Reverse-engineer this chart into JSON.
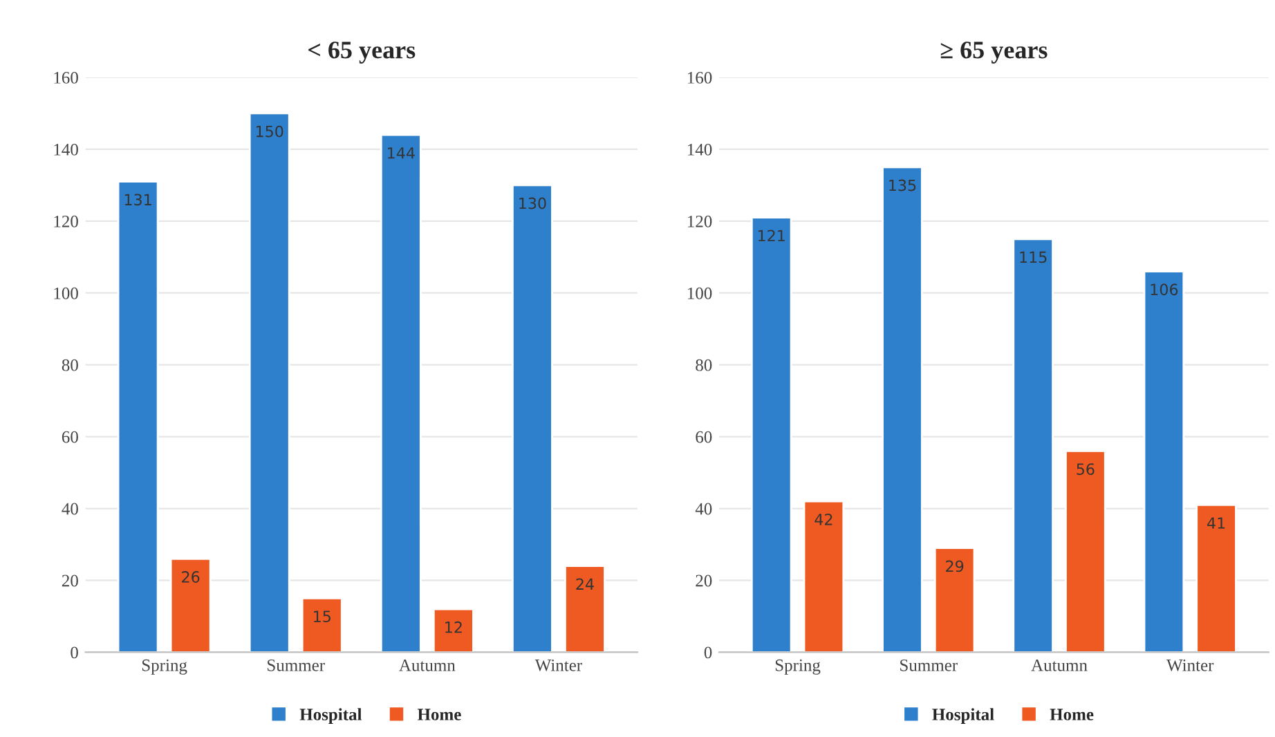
{
  "chart_data": [
    {
      "type": "bar",
      "title": "< 65 years",
      "categories": [
        "Spring",
        "Summer",
        "Autumn",
        "Winter"
      ],
      "series": [
        {
          "name": "Hospital",
          "color": "#2f80cc",
          "values": [
            131,
            150,
            144,
            130
          ]
        },
        {
          "name": "Home",
          "color": "#ef5a22",
          "values": [
            26,
            15,
            12,
            24
          ]
        }
      ],
      "ylim": [
        0,
        160
      ],
      "yticks": [
        0,
        20,
        40,
        60,
        80,
        100,
        120,
        140,
        160
      ],
      "grid": "y",
      "legend": "bottom",
      "data_labels": true
    },
    {
      "type": "bar",
      "title": "≥ 65 years",
      "categories": [
        "Spring",
        "Summer",
        "Autumn",
        "Winter"
      ],
      "series": [
        {
          "name": "Hospital",
          "color": "#2f80cc",
          "values": [
            121,
            135,
            115,
            106
          ]
        },
        {
          "name": "Home",
          "color": "#ef5a22",
          "values": [
            42,
            29,
            56,
            41
          ]
        }
      ],
      "ylim": [
        0,
        160
      ],
      "yticks": [
        0,
        20,
        40,
        60,
        80,
        100,
        120,
        140,
        160
      ],
      "grid": "y",
      "legend": "bottom",
      "data_labels": true
    }
  ]
}
